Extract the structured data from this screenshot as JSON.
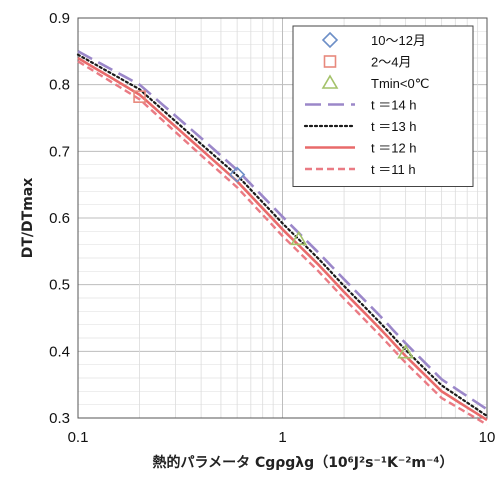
{
  "chart_data": {
    "type": "line",
    "xscale": "log",
    "xlim": [
      0.1,
      10
    ],
    "ylim": [
      0.3,
      0.9
    ],
    "xlabel": "熱的パラメータ Cgρgλg（10⁶J²s⁻¹K⁻²m⁻⁴）",
    "ylabel": "DT/DTmax",
    "x_tick_labels": [
      "0.1",
      "1",
      "10"
    ],
    "x_ticks": [
      0.1,
      1,
      10
    ],
    "y_tick_labels": [
      "0.3",
      "0.4",
      "0.5",
      "0.6",
      "0.7",
      "0.8",
      "0.9"
    ],
    "y_ticks": [
      0.3,
      0.4,
      0.5,
      0.6,
      0.7,
      0.8,
      0.9
    ],
    "grid": true,
    "legend_position": "top-right",
    "series": [
      {
        "name": "t ＝14 h",
        "kind": "line",
        "style": "long-dash",
        "color": "#9b87c9",
        "x": [
          0.1,
          0.2,
          0.4,
          0.6,
          1.0,
          1.5,
          2.0,
          3.0,
          4.0,
          6.0,
          10.0
        ],
        "y": [
          0.85,
          0.8,
          0.72,
          0.672,
          0.602,
          0.548,
          0.508,
          0.453,
          0.412,
          0.358,
          0.313
        ]
      },
      {
        "name": "t ＝13 h",
        "kind": "line",
        "style": "dotted",
        "color": "#1a1a1a",
        "x": [
          0.1,
          0.2,
          0.4,
          0.6,
          1.0,
          1.5,
          2.0,
          3.0,
          4.0,
          6.0,
          10.0
        ],
        "y": [
          0.845,
          0.793,
          0.711,
          0.664,
          0.592,
          0.539,
          0.498,
          0.443,
          0.402,
          0.349,
          0.303
        ]
      },
      {
        "name": "t ＝12 h",
        "kind": "line",
        "style": "solid",
        "color": "#e86a6a",
        "x": [
          0.1,
          0.2,
          0.4,
          0.6,
          1.0,
          1.5,
          2.0,
          3.0,
          4.0,
          6.0,
          10.0
        ],
        "y": [
          0.84,
          0.785,
          0.703,
          0.655,
          0.583,
          0.53,
          0.489,
          0.434,
          0.393,
          0.34,
          0.297
        ]
      },
      {
        "name": "t ＝11 h",
        "kind": "line",
        "style": "short-dash",
        "color": "#ea7b84",
        "x": [
          0.1,
          0.2,
          0.4,
          0.6,
          1.0,
          1.5,
          2.0,
          3.0,
          4.0,
          6.0,
          10.0
        ],
        "y": [
          0.835,
          0.778,
          0.694,
          0.646,
          0.573,
          0.52,
          0.479,
          0.424,
          0.383,
          0.33,
          0.29
        ]
      },
      {
        "name": "10〜12月",
        "kind": "marker",
        "marker": "diamond",
        "color": "#6d8fc7",
        "x": [
          0.6
        ],
        "y": [
          0.665
        ]
      },
      {
        "name": "2〜4月",
        "kind": "marker",
        "marker": "square",
        "color": "#e8897d",
        "x": [
          0.2
        ],
        "y": [
          0.782
        ]
      },
      {
        "name": "Tmin<0℃",
        "kind": "marker",
        "marker": "triangle",
        "color": "#a4c26a",
        "x": [
          1.2,
          4.0
        ],
        "y": [
          0.568,
          0.398
        ]
      }
    ],
    "legend": [
      {
        "label": "10〜12月",
        "type": "marker",
        "marker": "diamond",
        "color": "#6d8fc7"
      },
      {
        "label": "2〜4月",
        "type": "marker",
        "marker": "square",
        "color": "#e8897d"
      },
      {
        "label": "Tmin<0℃",
        "type": "marker",
        "marker": "triangle",
        "color": "#a4c26a"
      },
      {
        "label": "t ＝14 h",
        "type": "line",
        "style": "long-dash",
        "color": "#9b87c9"
      },
      {
        "label": "t ＝13 h",
        "type": "line",
        "style": "dotted",
        "color": "#1a1a1a"
      },
      {
        "label": "t ＝12 h",
        "type": "line",
        "style": "solid",
        "color": "#e86a6a"
      },
      {
        "label": "t ＝11 h",
        "type": "line",
        "style": "short-dash",
        "color": "#ea7b84"
      }
    ]
  }
}
